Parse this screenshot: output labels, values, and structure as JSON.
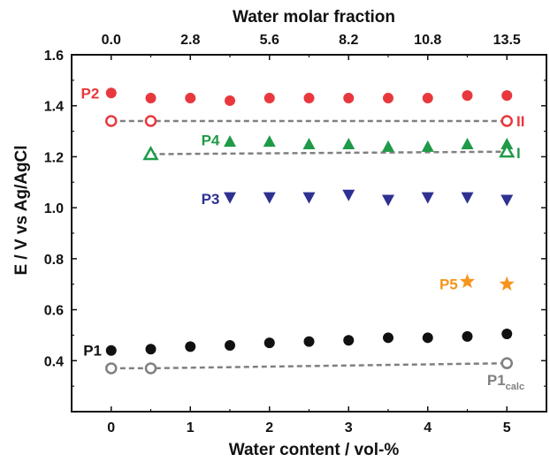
{
  "chart_data": {
    "type": "scatter",
    "xlabel": "Water content / vol-%",
    "ylabel": "E / V vs Ag/AgCl",
    "top_axis_label": "Water molar fraction",
    "xlim": [
      -0.5,
      5.5
    ],
    "ylim": [
      0.2,
      1.6
    ],
    "x_ticks": [
      "0",
      "1",
      "2",
      "3",
      "4",
      "5"
    ],
    "y_ticks": [
      "0.4",
      "0.6",
      "0.8",
      "1.0",
      "1.2",
      "1.4",
      "1.6"
    ],
    "top_ticks": [
      {
        "x": 0,
        "label": "0.0"
      },
      {
        "x": 1,
        "label": "2.8"
      },
      {
        "x": 2,
        "label": "5.6"
      },
      {
        "x": 3,
        "label": "8.2"
      },
      {
        "x": 4,
        "label": "10.8"
      },
      {
        "x": 5,
        "label": "13.5"
      }
    ],
    "colors": {
      "P2": "#e8383d",
      "P4": "#1e9a48",
      "P3": "#2e3192",
      "P5": "#f7941d",
      "P1": "#111111",
      "calc": "#808080"
    },
    "series": [
      {
        "name": "P2",
        "marker": "circle-filled",
        "color": "#e8383d",
        "x": [
          0,
          0.5,
          1,
          1.5,
          2,
          2.5,
          3,
          3.5,
          4,
          4.5,
          5
        ],
        "y": [
          1.45,
          1.43,
          1.43,
          1.42,
          1.43,
          1.43,
          1.43,
          1.43,
          1.43,
          1.44,
          1.44
        ]
      },
      {
        "name": "II",
        "marker": "circle-open",
        "color": "#e8383d",
        "dashed_line": true,
        "x": [
          0,
          0.5,
          5
        ],
        "y": [
          1.34,
          1.34,
          1.34
        ]
      },
      {
        "name": "P4",
        "marker": "triangle-up-filled",
        "color": "#1e9a48",
        "x": [
          1.5,
          2,
          2.5,
          3,
          3.5,
          4,
          4.5,
          5
        ],
        "y": [
          1.26,
          1.26,
          1.25,
          1.25,
          1.24,
          1.24,
          1.25,
          1.25
        ]
      },
      {
        "name": "I",
        "marker": "triangle-up-open",
        "color": "#1e9a48",
        "dashed_line": true,
        "x": [
          0.5,
          5
        ],
        "y": [
          1.21,
          1.22
        ]
      },
      {
        "name": "P3",
        "marker": "triangle-down-filled",
        "color": "#2e3192",
        "x": [
          1.5,
          2,
          2.5,
          3,
          3.5,
          4,
          4.5,
          5
        ],
        "y": [
          1.04,
          1.04,
          1.04,
          1.05,
          1.03,
          1.04,
          1.04,
          1.03
        ]
      },
      {
        "name": "P5",
        "marker": "star",
        "color": "#f7941d",
        "x": [
          4.5,
          5
        ],
        "y": [
          0.71,
          0.7
        ]
      },
      {
        "name": "P1",
        "marker": "circle-filled",
        "color": "#111111",
        "x": [
          0,
          0.5,
          1,
          1.5,
          2,
          2.5,
          3,
          3.5,
          4,
          4.5,
          5
        ],
        "y": [
          0.44,
          0.445,
          0.455,
          0.46,
          0.47,
          0.475,
          0.48,
          0.49,
          0.49,
          0.495,
          0.505
        ]
      },
      {
        "name": "P1calc",
        "marker": "circle-open",
        "color": "#808080",
        "dashed_line": true,
        "x": [
          0,
          0.5,
          5
        ],
        "y": [
          0.37,
          0.37,
          0.39
        ]
      }
    ],
    "annotations": [
      {
        "text": "P2",
        "color": "#e8383d",
        "x": -0.15,
        "y": 1.45,
        "anchor": "end"
      },
      {
        "text": "II",
        "color": "#e8383d",
        "x": 5.12,
        "y": 1.34,
        "anchor": "start"
      },
      {
        "text": "P4",
        "color": "#1e9a48",
        "x": 1.37,
        "y": 1.265,
        "anchor": "end"
      },
      {
        "text": "I",
        "color": "#1e9a48",
        "x": 5.12,
        "y": 1.215,
        "anchor": "start"
      },
      {
        "text": "P3",
        "color": "#2e3192",
        "x": 1.37,
        "y": 1.035,
        "anchor": "end"
      },
      {
        "text": "P5",
        "color": "#f7941d",
        "x": 4.38,
        "y": 0.7,
        "anchor": "end"
      },
      {
        "text": "P1",
        "color": "#111111",
        "x": -0.12,
        "y": 0.44,
        "anchor": "end"
      },
      {
        "text": "P1",
        "sub": "calc",
        "color": "#808080",
        "x": 4.75,
        "y": 0.325,
        "anchor": "start"
      }
    ]
  }
}
